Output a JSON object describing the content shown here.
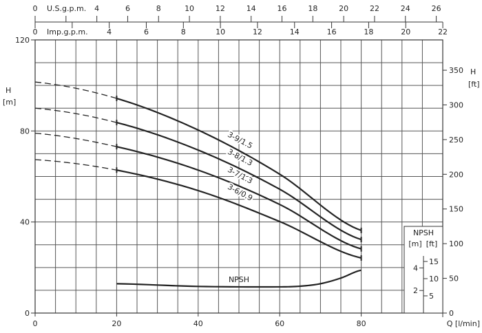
{
  "chart_data": {
    "type": "line",
    "xlabel": "Q [l/min]",
    "ylabel": "H",
    "ylabel_unit": "[m]",
    "y2label": "H",
    "y2label_unit": "[ft]",
    "xlim": [
      0,
      100
    ],
    "ylim": [
      0,
      120
    ],
    "x_ticks": [
      0,
      20,
      40,
      60,
      80
    ],
    "y_ticks": [
      0,
      40,
      80,
      120
    ],
    "y2_ticks": [
      0,
      50,
      100,
      150,
      200,
      250,
      300,
      350
    ],
    "grid": true,
    "top_axes": [
      {
        "label": "U.S.g.p.m.",
        "ticks": [
          0,
          4,
          6,
          8,
          10,
          12,
          14,
          16,
          18,
          20,
          22,
          24,
          26
        ]
      },
      {
        "label": "Imp.g.p.m.",
        "ticks": [
          0,
          4,
          6,
          8,
          10,
          12,
          14,
          16,
          18,
          20,
          22
        ]
      }
    ],
    "x": [
      0,
      20,
      40,
      60,
      80
    ],
    "dashed_range": [
      0,
      20
    ],
    "series": [
      {
        "name": "3-9/1.5",
        "values": [
          101.5,
          94.3,
          80.4,
          61.0,
          36.3
        ]
      },
      {
        "name": "3-8/1.3",
        "values": [
          90.0,
          83.7,
          71.6,
          54.4,
          32.3
        ]
      },
      {
        "name": "3-7/1.3",
        "values": [
          79.0,
          73.1,
          62.8,
          47.7,
          28.2
        ]
      },
      {
        "name": "3-6/0.9",
        "values": [
          67.4,
          62.8,
          53.8,
          40.2,
          24.2
        ]
      }
    ],
    "npsh": {
      "label": "NPSH",
      "title": "NPSH",
      "unit_m": "[m]",
      "unit_ft": "[ft]",
      "m_ticks": [
        2,
        4
      ],
      "ft_ticks": [
        5,
        10,
        15
      ],
      "x": [
        20,
        40,
        60,
        65,
        70,
        75,
        80
      ],
      "values": [
        2.6,
        2.36,
        2.32,
        2.38,
        2.6,
        3.1,
        3.8
      ]
    }
  }
}
